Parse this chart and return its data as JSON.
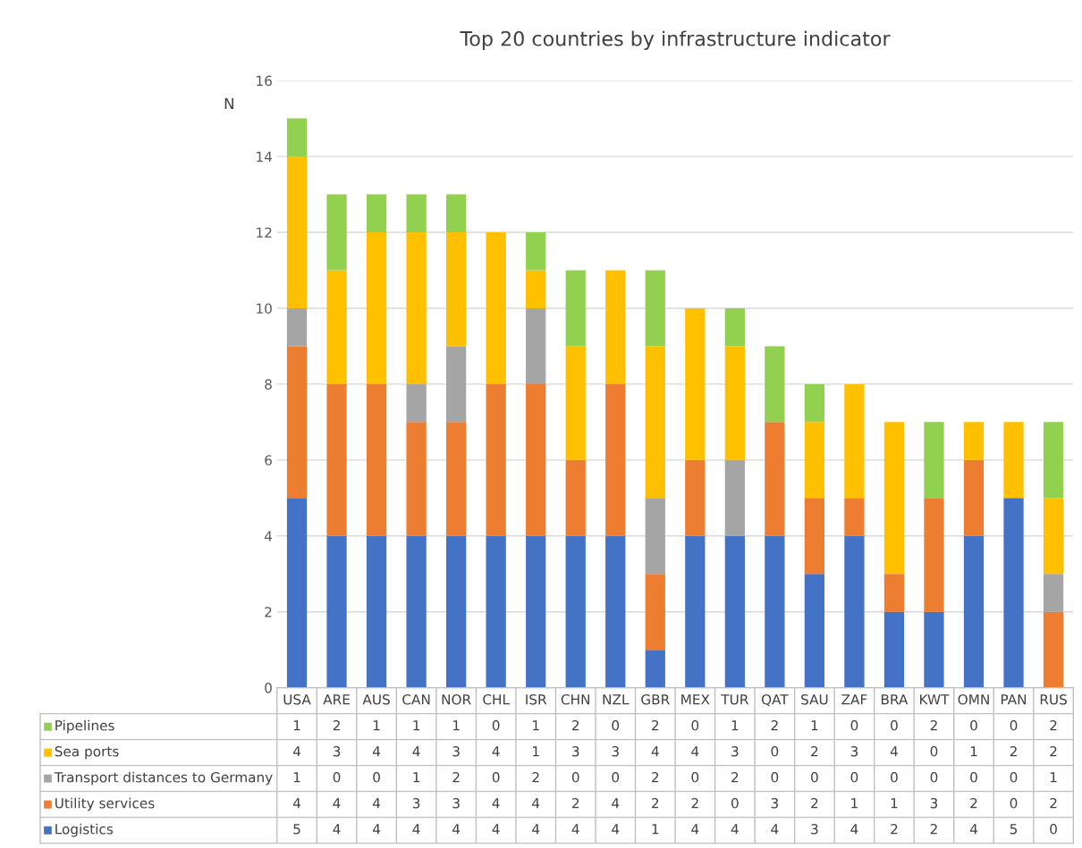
{
  "chart_data": {
    "type": "bar",
    "stacked": true,
    "title": "Top 20 countries by infrastructure indicator",
    "ylabel": "N",
    "categories": [
      "USA",
      "ARE",
      "AUS",
      "CAN",
      "NOR",
      "CHL",
      "ISR",
      "CHN",
      "NZL",
      "GBR",
      "MEX",
      "TUR",
      "QAT",
      "SAU",
      "ZAF",
      "BRA",
      "KWT",
      "OMN",
      "PAN",
      "RUS"
    ],
    "series": [
      {
        "name": "Logistics",
        "color": "#4472c4",
        "values": [
          5,
          4,
          4,
          4,
          4,
          4,
          4,
          4,
          4,
          1,
          4,
          4,
          4,
          3,
          4,
          2,
          2,
          4,
          5,
          0
        ]
      },
      {
        "name": "Utility services",
        "color": "#ed7d31",
        "values": [
          4,
          4,
          4,
          3,
          3,
          4,
          4,
          2,
          4,
          2,
          2,
          0,
          3,
          2,
          1,
          1,
          3,
          2,
          0,
          2
        ]
      },
      {
        "name": "Transport distances to Germany",
        "color": "#a5a5a5",
        "values": [
          1,
          0,
          0,
          1,
          2,
          0,
          2,
          0,
          0,
          2,
          0,
          2,
          0,
          0,
          0,
          0,
          0,
          0,
          0,
          1
        ]
      },
      {
        "name": "Sea ports",
        "color": "#ffc000",
        "values": [
          4,
          3,
          4,
          4,
          3,
          4,
          1,
          3,
          3,
          4,
          4,
          3,
          0,
          2,
          3,
          4,
          0,
          1,
          2,
          2
        ]
      },
      {
        "name": "Pipelines",
        "color": "#92d050",
        "values": [
          1,
          2,
          1,
          1,
          1,
          0,
          1,
          2,
          0,
          2,
          0,
          1,
          2,
          1,
          0,
          0,
          2,
          0,
          0,
          2
        ]
      }
    ],
    "ylim": [
      0,
      16
    ],
    "yticks": [
      0,
      2,
      4,
      6,
      8,
      10,
      12,
      14,
      16
    ],
    "grid": "y",
    "legend": "bottom",
    "data_labels": true
  }
}
